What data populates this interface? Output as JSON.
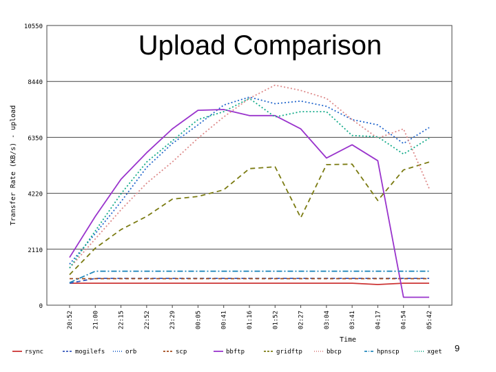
{
  "slide": {
    "page_number": "9"
  },
  "chart_data": {
    "type": "line",
    "title": "Upload Comparison",
    "xlabel": "Time",
    "ylabel": "Transfer Rate (KB/s) - upload",
    "ylim": [
      0,
      10550
    ],
    "yticks": [
      "0",
      "2110",
      "4220",
      "6350",
      "8440",
      "10550"
    ],
    "categories": [
      "20:52",
      "21:00",
      "22:15",
      "22:52",
      "23:29",
      "00:05",
      "00:41",
      "01:16",
      "01:52",
      "02:27",
      "03:04",
      "03:41",
      "04:17",
      "04:54",
      "05:42"
    ],
    "grid": "horizontal",
    "legend_position": "bottom",
    "series": [
      {
        "name": "rsync",
        "color": "#cc3333",
        "dash": "solid",
        "values": [
          830,
          830,
          830,
          830,
          830,
          830,
          830,
          830,
          830,
          830,
          830,
          830,
          780,
          830,
          830
        ]
      },
      {
        "name": "mogilefs",
        "color": "#3355bb",
        "dash": "6,4",
        "values": [
          830,
          1010,
          1010,
          1010,
          1010,
          1010,
          1010,
          1010,
          1010,
          1010,
          1010,
          1010,
          1010,
          1010,
          1010
        ]
      },
      {
        "name": "orb",
        "color": "#2266cc",
        "dash": "2,3",
        "values": [
          1550,
          2700,
          3900,
          5200,
          6100,
          6800,
          7550,
          7850,
          7600,
          7700,
          7500,
          7000,
          6800,
          6100,
          6700
        ]
      },
      {
        "name": "scp",
        "color": "#a04818",
        "dash": "5,4",
        "values": [
          1000,
          1000,
          1000,
          1000,
          1000,
          1000,
          1000,
          1000,
          1000,
          1000,
          1000,
          1000,
          1000,
          1000,
          1000
        ]
      },
      {
        "name": "bbftp",
        "color": "#9933cc",
        "dash": "solid",
        "values": [
          1800,
          3350,
          4750,
          5750,
          6650,
          7350,
          7380,
          7150,
          7150,
          6650,
          5550,
          6050,
          5450,
          300,
          300
        ]
      },
      {
        "name": "gridftp",
        "color": "#7a7a10",
        "dash": "7,5",
        "values": [
          1150,
          2150,
          2850,
          3350,
          4000,
          4100,
          4350,
          5150,
          5220,
          3300,
          5300,
          5320,
          3950,
          5100,
          5400
        ]
      },
      {
        "name": "bbcp",
        "color": "#dd8888",
        "dash": "2,3",
        "values": [
          1400,
          2500,
          3600,
          4600,
          5400,
          6300,
          7100,
          7800,
          8300,
          8100,
          7800,
          7000,
          6300,
          6650,
          4400
        ]
      },
      {
        "name": "hpnscp",
        "color": "#2288bb",
        "dash": "8,3,2,3",
        "values": [
          850,
          1280,
          1280,
          1280,
          1280,
          1280,
          1280,
          1280,
          1280,
          1280,
          1280,
          1280,
          1280,
          1280,
          1280
        ]
      },
      {
        "name": "xget",
        "color": "#11aa88",
        "dash": "2,3",
        "values": [
          1400,
          2800,
          4200,
          5400,
          6200,
          7000,
          7300,
          7800,
          7100,
          7300,
          7300,
          6400,
          6350,
          5700,
          6300
        ]
      }
    ]
  }
}
